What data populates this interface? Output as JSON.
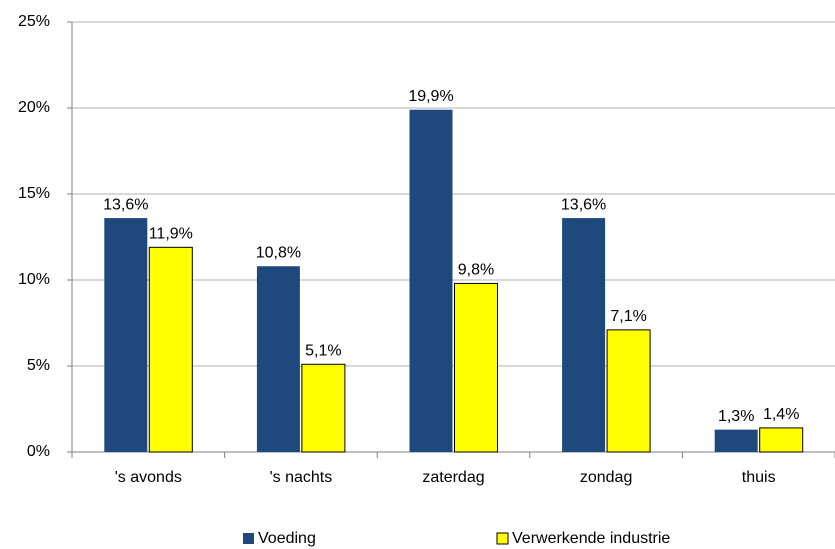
{
  "chart_data": {
    "type": "bar",
    "categories": [
      "'s avonds",
      "'s nachts",
      "zaterdag",
      "zondag",
      "thuis"
    ],
    "series": [
      {
        "name": "Voeding",
        "color": "#1f497d",
        "values": [
          13.6,
          10.8,
          19.9,
          13.6,
          1.3
        ],
        "value_labels": [
          "13,6%",
          "10,8%",
          "19,9%",
          "13,6%",
          "1,3%"
        ]
      },
      {
        "name": "Verwerkende industrie",
        "color": "#ffff00",
        "values": [
          11.9,
          5.1,
          9.8,
          7.1,
          1.4
        ],
        "value_labels": [
          "11,9%",
          "5,1%",
          "9,8%",
          "7,1%",
          "1,4%"
        ]
      }
    ],
    "ylim": [
      0,
      25
    ],
    "yticks": [
      {
        "value": 0,
        "label": "0%"
      },
      {
        "value": 5,
        "label": "5%"
      },
      {
        "value": 10,
        "label": "10%"
      },
      {
        "value": 15,
        "label": "15%"
      },
      {
        "value": 20,
        "label": "20%"
      },
      {
        "value": 25,
        "label": "25%"
      }
    ],
    "grid": true,
    "legend": "bottom"
  }
}
